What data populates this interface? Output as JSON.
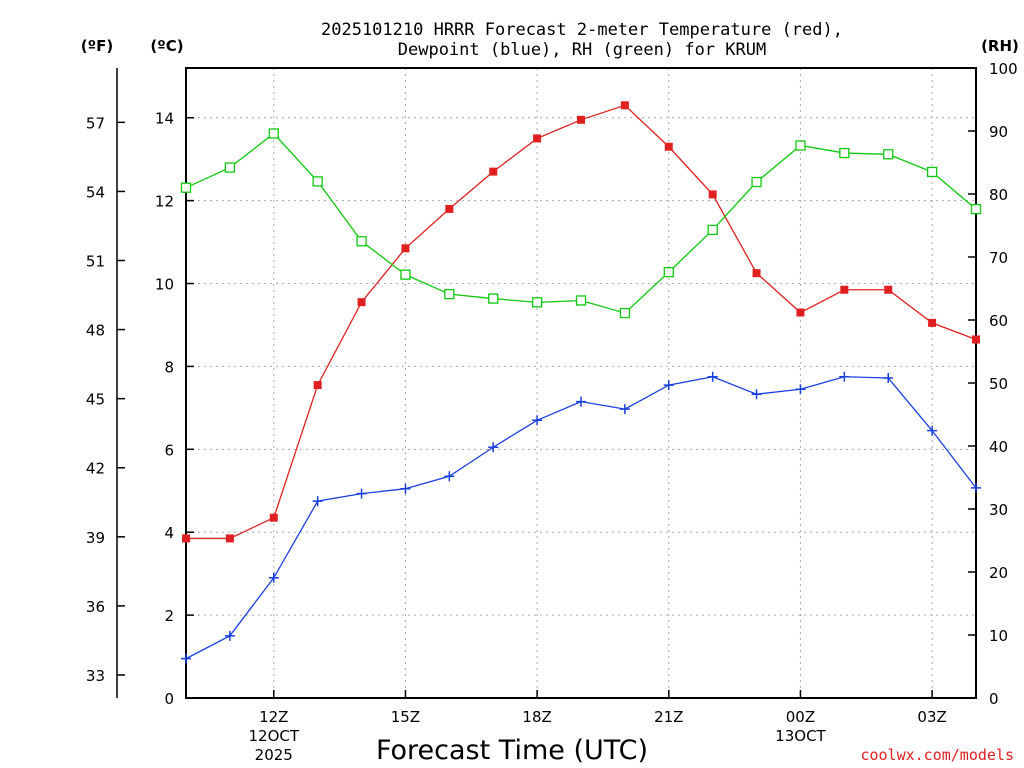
{
  "chart_data": {
    "type": "line",
    "title_line1": "2025101210 HRRR Forecast 2-meter Temperature (red),",
    "title_line2": "Dewpoint (blue), RH (green) for KRUM",
    "xlabel": "Forecast Time (UTC)",
    "unit_f": "(ºF)",
    "unit_c": "(ºC)",
    "unit_rh": "(RH)",
    "credit": "coolwx.com/models",
    "hours": [
      10,
      11,
      12,
      13,
      14,
      15,
      16,
      17,
      18,
      19,
      20,
      21,
      22,
      23,
      24,
      25,
      26,
      27,
      28
    ],
    "x_ticks": [
      {
        "hour": 12,
        "label": "12Z",
        "date1": "12OCT",
        "date2": "2025"
      },
      {
        "hour": 15,
        "label": "15Z",
        "date1": "",
        "date2": ""
      },
      {
        "hour": 18,
        "label": "18Z",
        "date1": "",
        "date2": ""
      },
      {
        "hour": 21,
        "label": "21Z",
        "date1": "",
        "date2": ""
      },
      {
        "hour": 24,
        "label": "00Z",
        "date1": "13OCT",
        "date2": ""
      },
      {
        "hour": 27,
        "label": "03Z",
        "date1": "",
        "date2": ""
      }
    ],
    "xlim": [
      10,
      28
    ],
    "celsius_axis": {
      "ylim": [
        0,
        15.2
      ],
      "ticks": [
        "0",
        "2",
        "4",
        "6",
        "8",
        "10",
        "12",
        "14"
      ]
    },
    "fahrenheit_axis": {
      "ticks": [
        "33",
        "36",
        "39",
        "42",
        "45",
        "48",
        "51",
        "54",
        "57"
      ]
    },
    "rh_axis": {
      "ylim": [
        0,
        100
      ],
      "ticks": [
        "0",
        "10",
        "20",
        "30",
        "40",
        "50",
        "60",
        "70",
        "80",
        "90",
        "100"
      ]
    },
    "series": [
      {
        "name": "2-meter Temperature",
        "axis": "celsius",
        "color": "#e02020",
        "marker": "filled-square",
        "values": [
          3.85,
          3.85,
          4.35,
          7.55,
          9.55,
          10.85,
          11.8,
          12.7,
          13.5,
          13.95,
          14.3,
          13.3,
          12.15,
          10.25,
          9.3,
          9.85,
          9.85,
          9.05,
          8.65
        ]
      },
      {
        "name": "Dewpoint",
        "axis": "celsius",
        "color": "#1a3fe0",
        "marker": "plus",
        "values": [
          0.95,
          1.5,
          2.9,
          4.75,
          4.93,
          5.05,
          5.35,
          6.05,
          6.7,
          7.15,
          6.97,
          7.55,
          7.75,
          7.33,
          7.45,
          7.75,
          7.72,
          6.45,
          5.07
        ]
      },
      {
        "name": "RH",
        "axis": "rh",
        "color": "#10c810",
        "marker": "open-square",
        "values": [
          81,
          84.2,
          89.6,
          82,
          72.5,
          67.2,
          64.1,
          63.4,
          62.8,
          63.1,
          61.1,
          67.6,
          74.3,
          81.9,
          87.7,
          86.5,
          86.3,
          83.5,
          77.6
        ]
      }
    ]
  }
}
